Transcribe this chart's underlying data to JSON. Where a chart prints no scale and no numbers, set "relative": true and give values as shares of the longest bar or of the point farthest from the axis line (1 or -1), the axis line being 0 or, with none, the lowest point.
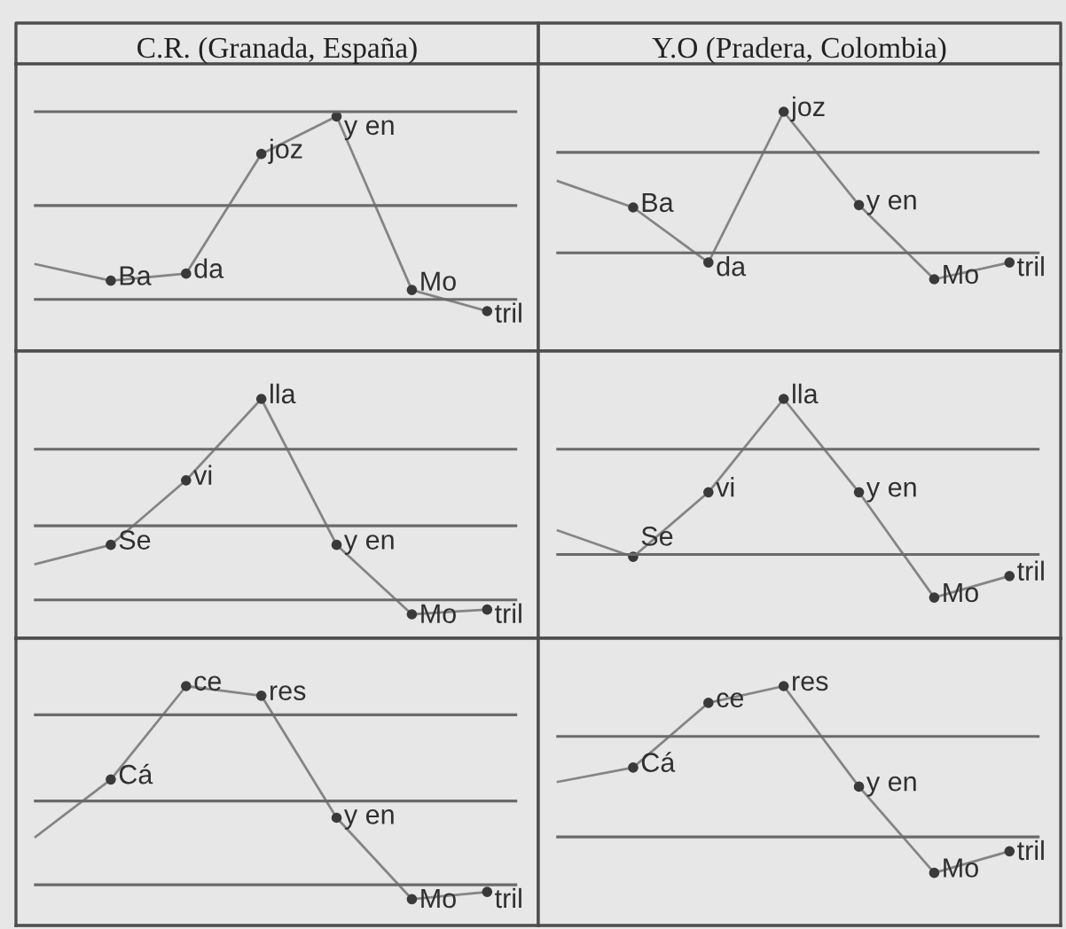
{
  "chart_data": [
    {
      "type": "line",
      "title": "C.R. (Granada, España)",
      "relative": true,
      "marker": "circle",
      "categories": [
        null,
        null,
        null,
        null,
        null,
        null,
        null
      ],
      "series": [
        {
          "color": "#858585",
          "values": [
            0.37,
            0.3,
            0.33,
            0.84,
            1,
            0.26,
            0.17
          ]
        }
      ],
      "annotations": [
        "Ba",
        "da",
        "joz",
        "y en",
        "Mo",
        "tril"
      ],
      "ref_lines": [
        {
          "axis": "y",
          "value": 1.02,
          "color": "#6a6a6a"
        },
        {
          "axis": "y",
          "value": 0.62,
          "color": "#6a6a6a"
        },
        {
          "axis": "y",
          "value": 0.22,
          "color": "#6a6a6a"
        }
      ]
    },
    {
      "type": "line",
      "title": "Y.O (Pradera, Colombia)",
      "relative": true,
      "marker": "circle",
      "categories": [
        null,
        null,
        null,
        null,
        null,
        null,
        null
      ],
      "series": [
        {
          "color": "#858585",
          "values": [
            0.71,
            0.6,
            0.37,
            1,
            0.61,
            0.3,
            0.37
          ]
        }
      ],
      "annotations": [
        "Ba",
        "da",
        "joz",
        "y en",
        "Mo",
        "tril"
      ],
      "ref_lines": [
        {
          "axis": "y",
          "value": 0.83,
          "color": "#6a6a6a"
        },
        {
          "axis": "y",
          "value": 0.41,
          "color": "#6a6a6a"
        }
      ]
    },
    {
      "type": "line",
      "relative": true,
      "marker": "circle",
      "categories": [
        null,
        null,
        null,
        null,
        null,
        null,
        null
      ],
      "series": [
        {
          "color": "#858585",
          "values": [
            0.31,
            0.39,
            0.66,
            1,
            0.39,
            0.1,
            0.12
          ]
        }
      ],
      "annotations": [
        "Se",
        "vi",
        "lla",
        "y en",
        "Mo",
        "tril"
      ],
      "ref_lines": [
        {
          "axis": "y",
          "value": 0.79,
          "color": "#6a6a6a"
        },
        {
          "axis": "y",
          "value": 0.47,
          "color": "#6a6a6a"
        },
        {
          "axis": "y",
          "value": 0.16,
          "color": "#6a6a6a"
        }
      ]
    },
    {
      "type": "line",
      "relative": true,
      "marker": "circle",
      "categories": [
        null,
        null,
        null,
        null,
        null,
        null,
        null
      ],
      "series": [
        {
          "color": "#858585",
          "values": [
            0.45,
            0.34,
            0.61,
            1,
            0.61,
            0.17,
            0.26
          ]
        }
      ],
      "annotations": [
        "Se",
        "vi",
        "lla",
        "y en",
        "Mo",
        "tril"
      ],
      "ref_lines": [
        {
          "axis": "y",
          "value": 0.79,
          "color": "#6a6a6a"
        },
        {
          "axis": "y",
          "value": 0.35,
          "color": "#6a6a6a"
        }
      ]
    },
    {
      "type": "line",
      "relative": true,
      "marker": "circle",
      "categories": [
        null,
        null,
        null,
        null,
        null,
        null,
        null
      ],
      "series": [
        {
          "color": "#858585",
          "values": [
            0.37,
            0.61,
            1,
            0.96,
            0.45,
            0.11,
            0.14
          ]
        }
      ],
      "annotations": [
        "Cá",
        "ce",
        "res",
        "y en",
        "Mo",
        "tril"
      ],
      "ref_lines": [
        {
          "axis": "y",
          "value": 0.88,
          "color": "#6a6a6a"
        },
        {
          "axis": "y",
          "value": 0.52,
          "color": "#6a6a6a"
        },
        {
          "axis": "y",
          "value": 0.17,
          "color": "#6a6a6a"
        }
      ]
    },
    {
      "type": "line",
      "relative": true,
      "marker": "circle",
      "categories": [
        null,
        null,
        null,
        null,
        null,
        null,
        null
      ],
      "series": [
        {
          "color": "#858585",
          "values": [
            0.6,
            0.66,
            0.93,
            1,
            0.58,
            0.22,
            0.31
          ]
        }
      ],
      "annotations": [
        "Cá",
        "ce",
        "res",
        "y en",
        "Mo",
        "tril"
      ],
      "ref_lines": [
        {
          "axis": "y",
          "value": 0.79,
          "color": "#6a6a6a"
        },
        {
          "axis": "y",
          "value": 0.37,
          "color": "#6a6a6a"
        }
      ]
    }
  ]
}
